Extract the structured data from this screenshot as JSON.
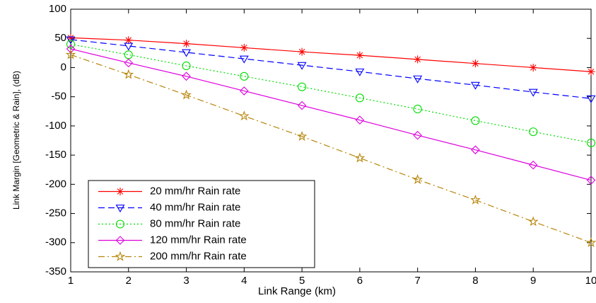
{
  "chart_data": {
    "type": "line",
    "x_label": "Link Range (km)",
    "y_label": "Link Margin [Geometric & Rain], (dB)",
    "x": [
      1,
      2,
      3,
      4,
      5,
      6,
      7,
      8,
      9,
      10
    ],
    "series": [
      {
        "name": "20 mm/hr Rain rate",
        "color": "#ff0000",
        "dash": "solid",
        "marker": "asterisk",
        "values": [
          51,
          47,
          41,
          34,
          27,
          21,
          14,
          7,
          0,
          -7
        ]
      },
      {
        "name": "40 mm/hr Rain rate",
        "color": "#0000ff",
        "dash": "dashed",
        "marker": "triangle-down",
        "values": [
          48,
          37,
          26,
          15,
          4,
          -7,
          -19,
          -30,
          -42,
          -53
        ]
      },
      {
        "name": "80 mm/hr Rain rate",
        "color": "#00dd00",
        "dash": "dotted",
        "marker": "circle",
        "values": [
          40,
          22,
          3,
          -15,
          -33,
          -52,
          -71,
          -91,
          -110,
          -129
        ]
      },
      {
        "name": "120 mm/hr Rain rate",
        "color": "#dd00dd",
        "dash": "solid",
        "marker": "diamond",
        "values": [
          32,
          8,
          -15,
          -40,
          -65,
          -90,
          -116,
          -141,
          -167,
          -193
        ]
      },
      {
        "name": "200 mm/hr Rain rate",
        "color": "#b8860b",
        "dash": "dashdot",
        "marker": "pentagram",
        "values": [
          22,
          -12,
          -47,
          -83,
          -118,
          -155,
          -192,
          -227,
          -264,
          -300
        ]
      }
    ],
    "xlim": [
      1,
      10
    ],
    "xticks": [
      1,
      2,
      3,
      4,
      5,
      6,
      7,
      8,
      9,
      10
    ],
    "ylim": [
      -350,
      100
    ],
    "yticks": [
      -350,
      -300,
      -250,
      -200,
      -150,
      -100,
      -50,
      0,
      50,
      100
    ],
    "grid": false,
    "legend": "lower-left"
  }
}
